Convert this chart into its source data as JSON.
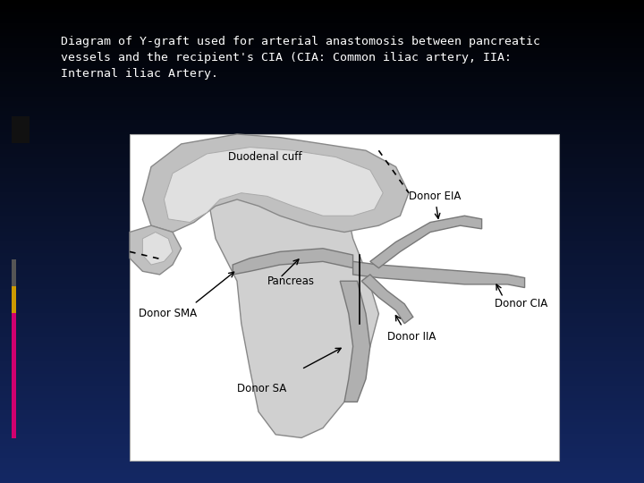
{
  "bg_top": "#000000",
  "bg_bottom": "#1a3a6a",
  "text_color": "#ffffff",
  "header_text_line1": "Diagram of Y-graft used for arterial anastomosis between pancreatic",
  "header_text_line2": "vessels and the recipient's CIA (CIA: Common iliac artery, IIA:",
  "header_text_line3": "Internal iliac Artery.",
  "header_font": "monospace",
  "header_fontsize": 9.5,
  "image_bg": "#ffffff",
  "gray_light": "#c8c8c8",
  "gray_mid": "#a8a8a8",
  "gray_dark": "#888888",
  "gray_vessel": "#b0b0b0",
  "gray_vessel_edge": "#787878",
  "left_bar_pink": "#d0006f",
  "left_bar_gray": "#555555",
  "left_bar_gold": "#cc9900"
}
